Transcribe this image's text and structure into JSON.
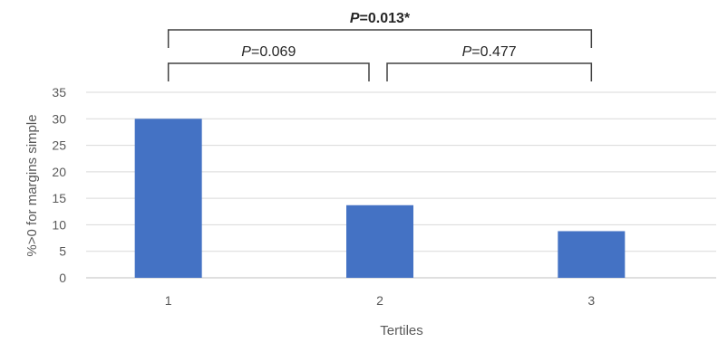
{
  "chart_data": {
    "type": "bar",
    "categories": [
      "1",
      "2",
      "3"
    ],
    "values": [
      30,
      13.7,
      8.8
    ],
    "xlabel": "Tertiles",
    "ylabel": "%>0 for margins simple",
    "ylim": [
      0,
      35
    ],
    "yticks": [
      "0",
      "5",
      "10",
      "15",
      "20",
      "25",
      "30",
      "35"
    ],
    "grid": true,
    "bar_color": "#4472c4",
    "annotations": [
      {
        "label_italic": "P",
        "label_rest": "=0.013*",
        "from": "1",
        "to": "3",
        "bold": true,
        "level": 2
      },
      {
        "label_italic": "P",
        "label_rest": "=0.069",
        "from": "1",
        "to": "2",
        "bold": false,
        "level": 1
      },
      {
        "label_italic": "P",
        "label_rest": "=0.477",
        "from": "2",
        "to": "3",
        "bold": false,
        "level": 1
      }
    ]
  }
}
